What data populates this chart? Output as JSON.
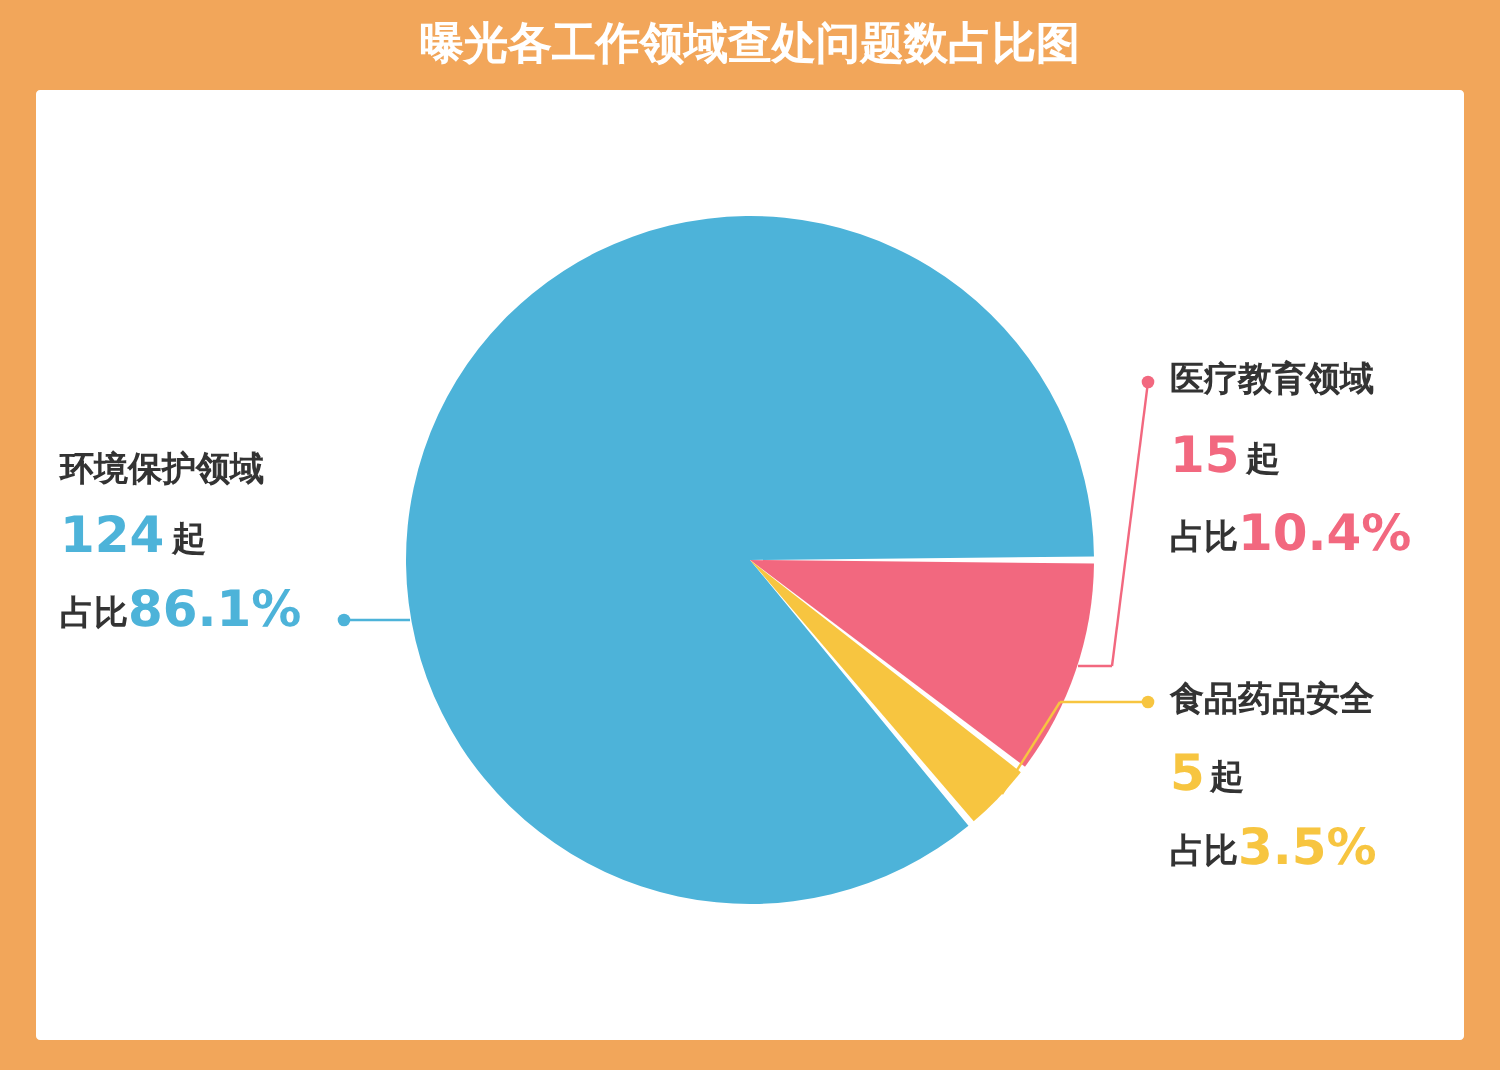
{
  "chart_data": {
    "type": "pie",
    "title": "曝光各工作领域查处问题数占比图",
    "categories": [
      "环境保护领域",
      "医疗教育领域",
      "食品药品安全"
    ],
    "values": [
      124,
      15,
      5
    ],
    "colors": [
      "#4db3d9",
      "#f2687f",
      "#f7c540"
    ],
    "value_labels": [
      "124起",
      "15起",
      "5起"
    ],
    "annotations": [
      "占比86.1%",
      "占比10.4%",
      "占比3.5%"
    ],
    "legend": "right"
  }
}
